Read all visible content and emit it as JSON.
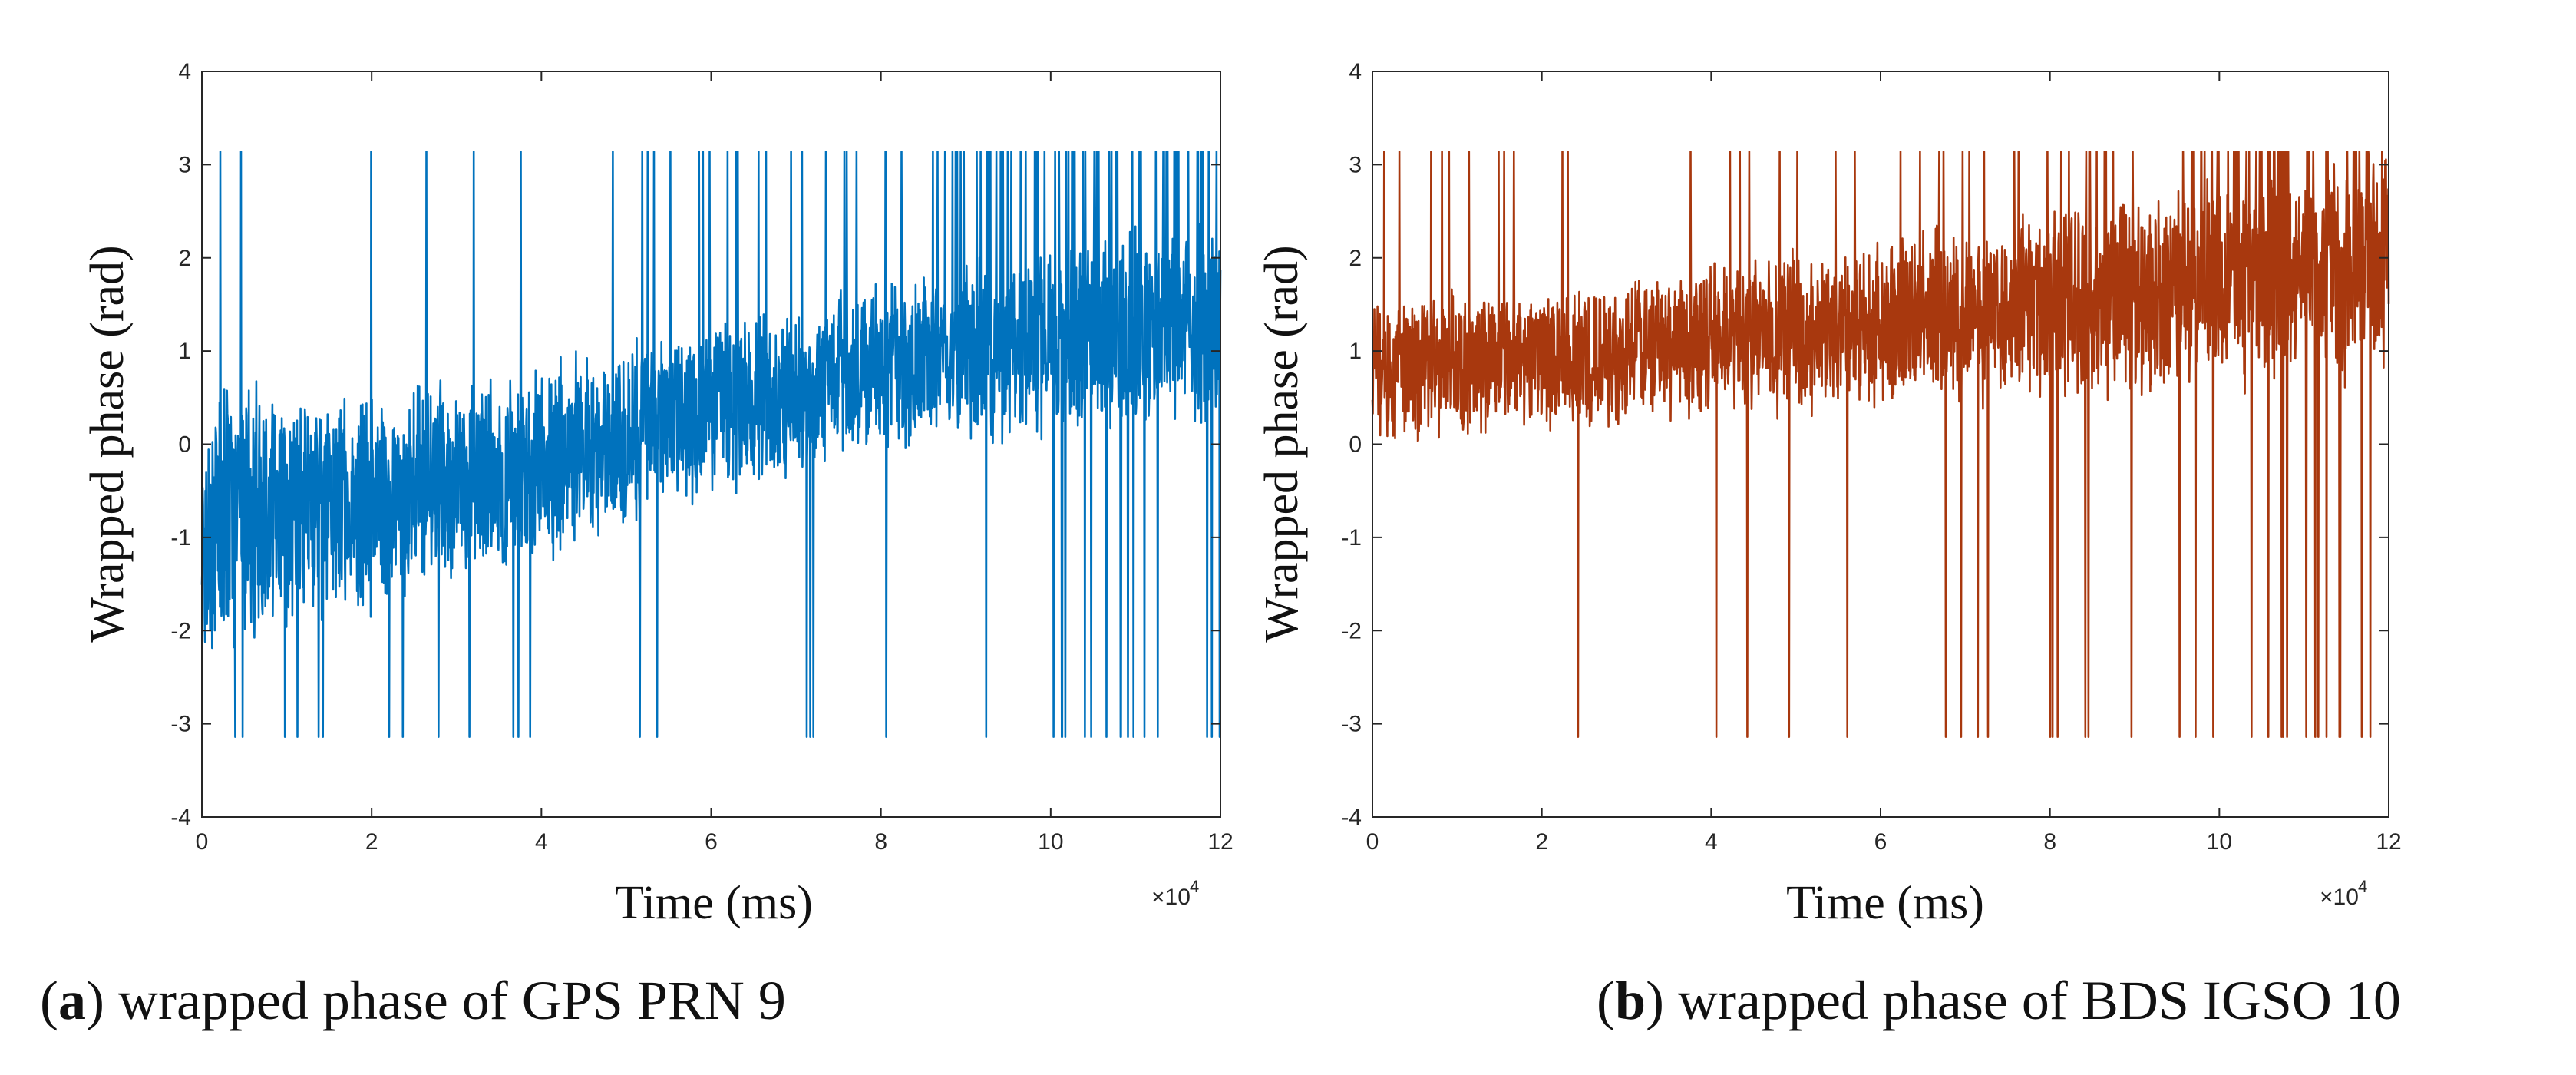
{
  "colors": {
    "series_a": "#0072BD",
    "series_b": "#A8380E",
    "axis": "#262626"
  },
  "chart_data": [
    {
      "type": "line",
      "panel": "a",
      "xlabel": "Time (ms)",
      "ylabel": "Wrapped phase (rad)",
      "x_exponent_base": "×10",
      "x_exponent_power": "4",
      "xlim": [
        0,
        12
      ],
      "ylim": [
        -4,
        4
      ],
      "xticks": [
        "0",
        "2",
        "4",
        "6",
        "8",
        "10",
        "12"
      ],
      "yticks": [
        "-4",
        "-3",
        "-2",
        "-1",
        "0",
        "1",
        "2",
        "3",
        "4"
      ],
      "trend": {
        "x": [
          0,
          2,
          4,
          6,
          8,
          10,
          12
        ],
        "y": [
          -0.8,
          -0.6,
          -0.2,
          0.4,
          0.8,
          1.1,
          1.3
        ]
      },
      "noise_amplitude": {
        "x": [
          0,
          2,
          4,
          6,
          8,
          10,
          12
        ],
        "y": [
          1.5,
          1.3,
          1.1,
          1.0,
          1.0,
          1.1,
          1.2
        ]
      },
      "wrap_limits": [
        -3.14,
        3.14
      ],
      "series": [
        {
          "name": "wrapped phase of GPS PRN 9",
          "color": "#0072BD"
        }
      ]
    },
    {
      "type": "line",
      "panel": "b",
      "xlabel": "Time (ms)",
      "ylabel": "Wrapped phase (rad)",
      "x_exponent_base": "×10",
      "x_exponent_power": "4",
      "xlim": [
        0,
        12
      ],
      "ylim": [
        -4,
        4
      ],
      "xticks": [
        "0",
        "2",
        "4",
        "6",
        "8",
        "10",
        "12"
      ],
      "yticks": [
        "-4",
        "-3",
        "-2",
        "-1",
        "0",
        "1",
        "2",
        "3",
        "4"
      ],
      "trend": {
        "x": [
          0,
          2,
          4,
          6,
          8,
          10,
          12
        ],
        "y": [
          0.8,
          0.9,
          1.1,
          1.3,
          1.5,
          1.7,
          1.9
        ]
      },
      "noise_amplitude": {
        "x": [
          0,
          2,
          4,
          6,
          8,
          10,
          12
        ],
        "y": [
          0.9,
          0.8,
          0.9,
          1.0,
          1.1,
          1.2,
          1.3
        ]
      },
      "wrap_limits": [
        -3.14,
        3.14
      ],
      "series": [
        {
          "name": "wrapped phase of BDS IGSO 10",
          "color": "#A8380E"
        }
      ]
    }
  ],
  "captions": {
    "a": {
      "letter": "a",
      "text": " wrapped phase of GPS PRN 9"
    },
    "b": {
      "letter": "b",
      "text": " wrapped phase of BDS IGSO 10"
    }
  }
}
